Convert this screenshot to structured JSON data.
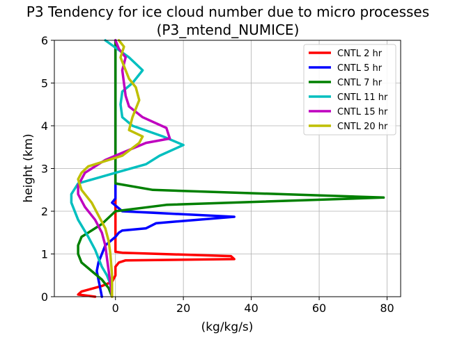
{
  "chart_data": {
    "type": "line",
    "title": "P3 Tendency for ice cloud number due to micro processes",
    "subtitle": "(P3_mtend_NUMICE)",
    "xlabel": "(kg/kg/s)",
    "ylabel": "height (km)",
    "xlim": [
      -18,
      84
    ],
    "ylim": [
      0,
      6
    ],
    "xticks": [
      0,
      20,
      40,
      60,
      80
    ],
    "xtick_labels": [
      "0",
      "20",
      "40",
      "60",
      "80"
    ],
    "yticks": [
      0,
      1,
      2,
      3,
      4,
      5,
      6
    ],
    "ytick_labels": [
      "0",
      "1",
      "2",
      "3",
      "4",
      "5",
      "6"
    ],
    "grid": true,
    "legend": "top-right",
    "series": [
      {
        "name": "CNTL 2 hr",
        "color": "#ff0000",
        "x": [
          -6,
          -11,
          -10,
          -4,
          -1,
          0,
          0,
          1,
          3,
          35,
          34,
          2,
          0,
          0,
          0,
          0,
          0,
          0
        ],
        "y": [
          0.0,
          0.05,
          0.12,
          0.25,
          0.35,
          0.5,
          0.7,
          0.8,
          0.85,
          0.88,
          0.95,
          1.03,
          1.05,
          1.5,
          2.5,
          4.0,
          5.0,
          6.0
        ]
      },
      {
        "name": "CNTL 5 hr",
        "color": "#0000ff",
        "x": [
          -4,
          -4.5,
          -5,
          -5.5,
          -5,
          -4,
          -3,
          0,
          1,
          2,
          9,
          12,
          35,
          2,
          -1,
          0,
          0,
          0,
          0
        ],
        "y": [
          0.0,
          0.2,
          0.4,
          0.6,
          0.8,
          1.0,
          1.2,
          1.4,
          1.5,
          1.55,
          1.6,
          1.72,
          1.87,
          2.0,
          2.2,
          2.3,
          3.0,
          4.0,
          6.0
        ]
      },
      {
        "name": "CNTL 7 hr",
        "color": "#008000",
        "x": [
          -1,
          -2,
          -4,
          -7,
          -10,
          -11,
          -11,
          -10,
          -8,
          -4,
          0,
          15,
          79,
          11,
          0,
          0,
          0,
          0,
          0,
          0,
          0
        ],
        "y": [
          0.0,
          0.2,
          0.4,
          0.6,
          0.8,
          1.0,
          1.2,
          1.4,
          1.5,
          1.7,
          2.0,
          2.15,
          2.32,
          2.5,
          2.65,
          2.8,
          3.5,
          4.0,
          5.0,
          5.8,
          6.0
        ]
      },
      {
        "name": "CNTL 11 hr",
        "color": "#00bfbf",
        "x": [
          -1,
          -1.5,
          -2.5,
          -4,
          -5,
          -6,
          -8,
          -11,
          -13,
          -13,
          -11,
          0,
          9,
          13,
          20,
          14,
          5,
          2,
          1.5,
          2,
          5,
          8,
          4,
          -3
        ],
        "y": [
          0.0,
          0.3,
          0.5,
          0.7,
          0.9,
          1.1,
          1.4,
          1.8,
          2.2,
          2.4,
          2.65,
          2.9,
          3.1,
          3.3,
          3.55,
          3.75,
          4.0,
          4.2,
          4.5,
          4.8,
          5.0,
          5.3,
          5.6,
          6.0
        ]
      },
      {
        "name": "CNTL 15 hr",
        "color": "#bf00bf",
        "x": [
          -1,
          -1.5,
          -2,
          -2.5,
          -3,
          -4,
          -6,
          -9,
          -11,
          -11,
          -9,
          -3,
          3,
          9,
          16,
          15,
          8,
          4,
          3,
          2.5,
          2,
          3,
          1,
          0
        ],
        "y": [
          0.0,
          0.3,
          0.6,
          0.9,
          1.2,
          1.5,
          1.8,
          2.1,
          2.4,
          2.6,
          2.9,
          3.2,
          3.4,
          3.6,
          3.7,
          3.95,
          4.2,
          4.45,
          4.7,
          5.0,
          5.3,
          5.6,
          5.8,
          6.0
        ]
      },
      {
        "name": "CNTL 20 hr",
        "color": "#bfbf00",
        "x": [
          -1,
          -1,
          -1.5,
          -2,
          -3,
          -5,
          -7,
          -10,
          -11,
          -10,
          -8,
          2,
          7,
          8,
          4,
          5,
          7,
          6,
          4,
          3,
          1.5,
          2.5,
          1
        ],
        "y": [
          0.0,
          0.5,
          1.0,
          1.3,
          1.6,
          1.9,
          2.2,
          2.5,
          2.75,
          2.9,
          3.05,
          3.3,
          3.6,
          3.75,
          3.9,
          4.2,
          4.6,
          4.9,
          5.1,
          5.3,
          5.6,
          5.85,
          6.0
        ]
      }
    ]
  }
}
